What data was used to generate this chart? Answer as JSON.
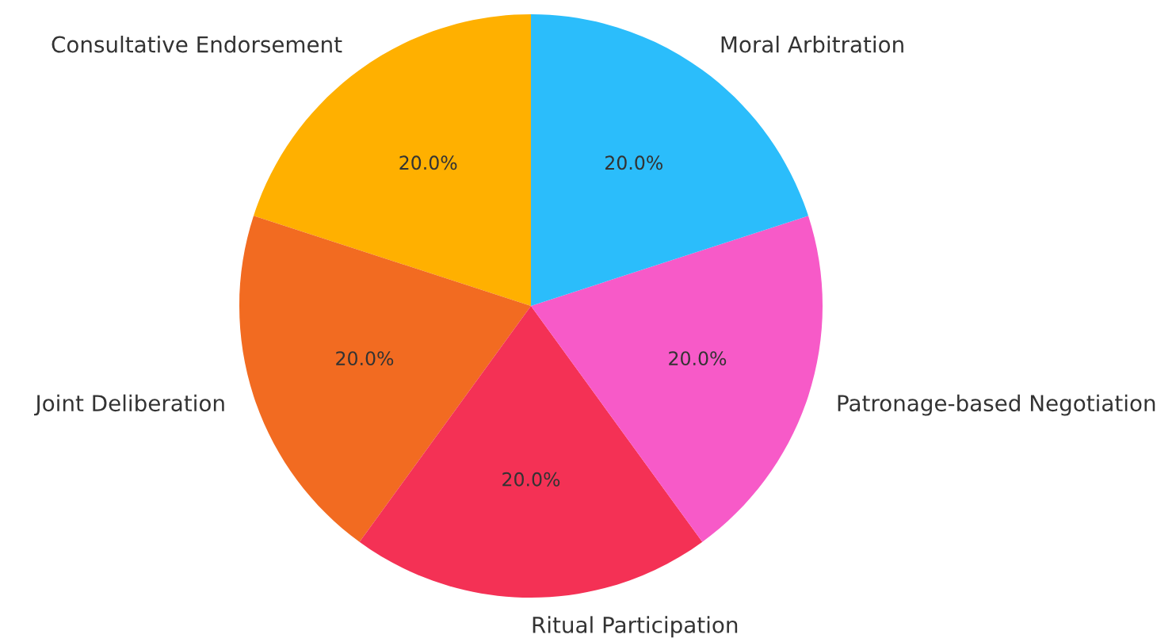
{
  "chart_data": {
    "type": "pie",
    "categories": [
      "Consultative Endorsement",
      "Joint Deliberation",
      "Ritual Participation",
      "Patronage-based Negotiation",
      "Moral Arbitration"
    ],
    "values": [
      20,
      20,
      20,
      20,
      20
    ],
    "colors": [
      "#ffb000",
      "#f26b21",
      "#f43155",
      "#f75ac8",
      "#2bbdfb"
    ],
    "value_labels": [
      "20.0%",
      "20.0%",
      "20.0%",
      "20.0%",
      "20.0%"
    ]
  }
}
